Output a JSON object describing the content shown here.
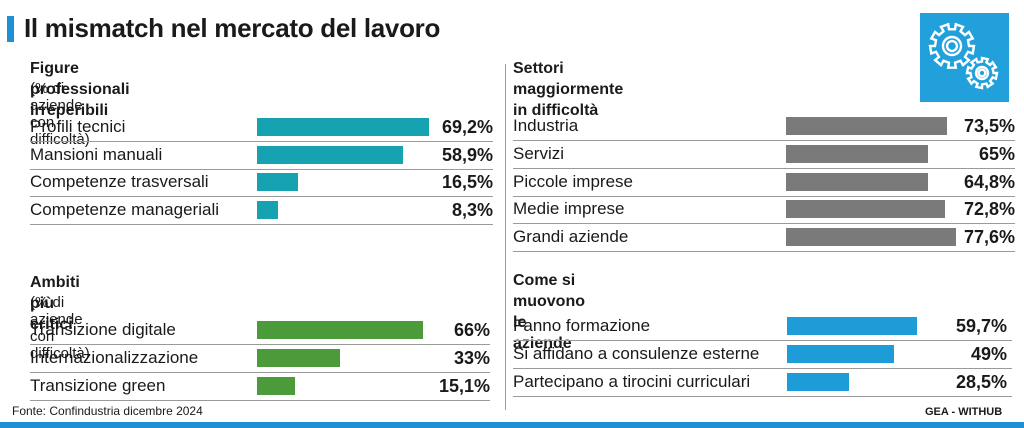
{
  "header": {
    "title": "Il mismatch nel mercato del lavoro"
  },
  "colors": {
    "accent": "#1e90d6",
    "teal": "#17a2b2",
    "green": "#4b9b3a",
    "gray": "#7a7a7a",
    "blue": "#1d9cd8",
    "gear_bg": "#21a0dc"
  },
  "icons": {
    "header_icon": "gears-icon"
  },
  "footer": {
    "source": "Fonte: Confindustria dicembre 2024",
    "credit": "GEA - WITHUB"
  },
  "chart_data": [
    {
      "type": "bar",
      "title": "Figure professionali irreperibili",
      "subtitle": "(% di aziende con difficoltà)",
      "categories": [
        "Profili tecnici",
        "Mansioni manuali",
        "Competenze trasversali",
        "Competenze manageriali"
      ],
      "values": [
        69.2,
        58.9,
        16.5,
        8.3
      ],
      "labels": [
        "69,2%",
        "58,9%",
        "16,5%",
        "8,3%"
      ],
      "color": "#17a2b2"
    },
    {
      "type": "bar",
      "title": "Ambiti più critici",
      "subtitle": "(% di aziende con difficoltà)",
      "categories": [
        "Transizione digitale",
        "Internazionalizzazione",
        "Transizione green"
      ],
      "values": [
        66,
        33,
        15.1
      ],
      "labels": [
        "66%",
        "33%",
        "15,1%"
      ],
      "color": "#4b9b3a"
    },
    {
      "type": "bar",
      "title": "Settori maggiormente\nin difficoltà",
      "subtitle": "",
      "categories": [
        "Industria",
        "Servizi",
        "Piccole imprese",
        "Medie imprese",
        "Grandi aziende"
      ],
      "values": [
        73.5,
        65,
        64.8,
        72.8,
        77.6
      ],
      "labels": [
        "73,5%",
        "65%",
        "64,8%",
        "72,8%",
        "77,6%"
      ],
      "color": "#7a7a7a"
    },
    {
      "type": "bar",
      "title": "Come si muovono\nle aziende",
      "subtitle": "",
      "categories": [
        "Fanno formazione",
        "Si affidano a consulenze esterne",
        "Partecipano a tirocini curriculari"
      ],
      "values": [
        59.7,
        49,
        28.5
      ],
      "labels": [
        "59,7%",
        "49%",
        "28,5%"
      ],
      "color": "#1d9cd8"
    }
  ]
}
